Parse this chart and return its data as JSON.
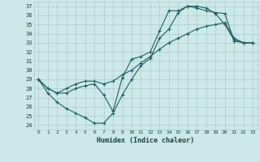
{
  "xlabel": "Humidex (Indice chaleur)",
  "bg_color": "#cce8e8",
  "grid_color": "#aacaca",
  "line_color": "#1a6060",
  "xlim": [
    -0.5,
    23.5
  ],
  "ylim": [
    23.5,
    37.5
  ],
  "xticks": [
    0,
    1,
    2,
    3,
    4,
    5,
    6,
    7,
    8,
    9,
    10,
    11,
    12,
    13,
    14,
    15,
    16,
    17,
    18,
    19,
    20,
    21,
    22,
    23
  ],
  "yticks": [
    24,
    25,
    26,
    27,
    28,
    29,
    30,
    31,
    32,
    33,
    34,
    35,
    36,
    37
  ],
  "line1_x": [
    0,
    1,
    2,
    3,
    4,
    5,
    6,
    7,
    8,
    9,
    10,
    11,
    12,
    13,
    14,
    15,
    16,
    17,
    18,
    19,
    20,
    21,
    22,
    23
  ],
  "line1_y": [
    29.0,
    27.5,
    26.5,
    25.8,
    25.3,
    24.8,
    24.2,
    24.2,
    25.3,
    27.3,
    29.0,
    30.5,
    31.3,
    33.5,
    34.5,
    36.3,
    37.0,
    37.0,
    36.8,
    36.2,
    35.0,
    33.3,
    33.0,
    33.0
  ],
  "line2_x": [
    0,
    1,
    2,
    3,
    4,
    5,
    6,
    7,
    8,
    9,
    10,
    11,
    12,
    13,
    14,
    15,
    16,
    17,
    18,
    19,
    20,
    21,
    22,
    23
  ],
  "line2_y": [
    29.0,
    28.0,
    27.5,
    27.5,
    28.0,
    28.3,
    28.5,
    27.3,
    25.5,
    29.2,
    31.2,
    31.5,
    32.0,
    34.3,
    36.5,
    36.5,
    37.0,
    36.8,
    36.5,
    36.3,
    36.2,
    33.2,
    33.0,
    33.0
  ],
  "line3_x": [
    0,
    1,
    2,
    3,
    4,
    5,
    6,
    7,
    8,
    9,
    10,
    11,
    12,
    13,
    14,
    15,
    16,
    17,
    18,
    19,
    20,
    21,
    22,
    23
  ],
  "line3_y": [
    29.0,
    28.0,
    27.5,
    28.0,
    28.5,
    28.8,
    28.8,
    28.5,
    28.8,
    29.5,
    30.0,
    30.8,
    31.5,
    32.3,
    33.0,
    33.5,
    34.0,
    34.5,
    34.8,
    35.0,
    35.2,
    33.5,
    33.0,
    33.0
  ]
}
